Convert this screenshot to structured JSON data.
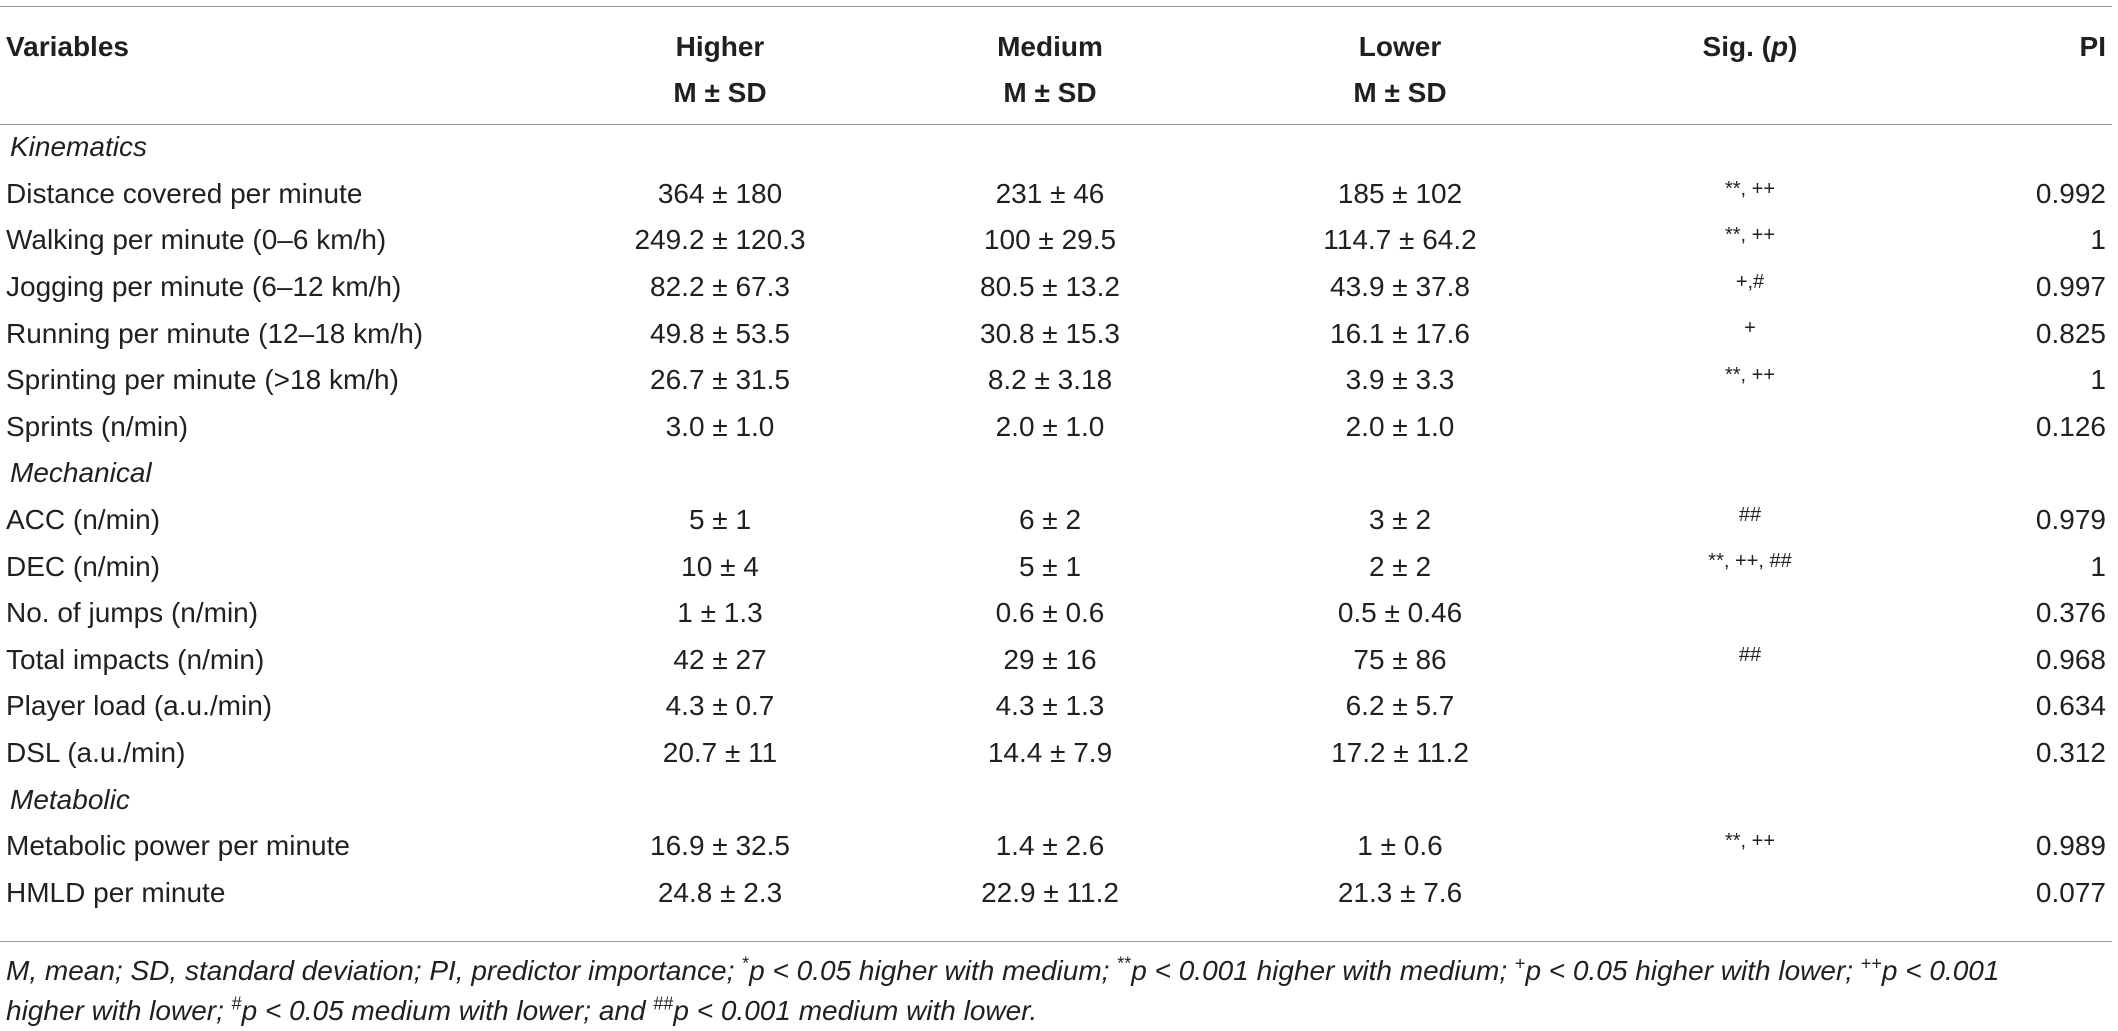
{
  "table": {
    "headers": {
      "variables": "Variables",
      "higher": "Higher",
      "medium": "Medium",
      "lower": "Lower",
      "stat": "M ± SD",
      "sig": "Sig. (",
      "sig_p": "p",
      "sig_close": ")",
      "pi": "PI"
    },
    "sections": [
      {
        "name": "Kinematics",
        "rows": [
          {
            "label": "Distance covered per minute",
            "higher": "364 ± 180",
            "medium": "231 ± 46",
            "lower": "185 ± 102",
            "sig": "**, ++",
            "pi": "0.992"
          },
          {
            "label": "Walking per minute (0–6 km/h)",
            "higher": "249.2 ± 120.3",
            "medium": "100 ± 29.5",
            "lower": "114.7 ± 64.2",
            "sig": "**, ++",
            "pi": "1"
          },
          {
            "label": "Jogging per minute (6–12 km/h)",
            "higher": "82.2 ± 67.3",
            "medium": "80.5 ± 13.2",
            "lower": "43.9 ± 37.8",
            "sig": "+,#",
            "pi": "0.997"
          },
          {
            "label": "Running per minute (12–18 km/h)",
            "higher": "49.8 ± 53.5",
            "medium": "30.8 ± 15.3",
            "lower": "16.1 ± 17.6",
            "sig": "+",
            "pi": "0.825"
          },
          {
            "label": "Sprinting per minute (>18 km/h)",
            "higher": "26.7 ± 31.5",
            "medium": "8.2 ± 3.18",
            "lower": "3.9 ± 3.3",
            "sig": "**, ++",
            "pi": "1"
          },
          {
            "label": "Sprints (n/min)",
            "higher": "3.0 ± 1.0",
            "medium": "2.0 ± 1.0",
            "lower": "2.0 ± 1.0",
            "sig": "",
            "pi": "0.126"
          }
        ]
      },
      {
        "name": "Mechanical",
        "rows": [
          {
            "label": "ACC (n/min)",
            "higher": "5 ± 1",
            "medium": "6 ± 2",
            "lower": "3 ± 2",
            "sig": "##",
            "pi": "0.979"
          },
          {
            "label": "DEC (n/min)",
            "higher": "10 ± 4",
            "medium": "5 ± 1",
            "lower": "2 ± 2",
            "sig": "**, ++, ##",
            "pi": "1"
          },
          {
            "label": "No. of jumps (n/min)",
            "higher": "1 ± 1.3",
            "medium": "0.6 ± 0.6",
            "lower": "0.5 ± 0.46",
            "sig": "",
            "pi": "0.376"
          },
          {
            "label": "Total impacts (n/min)",
            "higher": "42 ± 27",
            "medium": "29 ± 16",
            "lower": "75 ± 86",
            "sig": "##",
            "pi": "0.968"
          },
          {
            "label": "Player load (a.u./min)",
            "higher": "4.3 ± 0.7",
            "medium": "4.3 ± 1.3",
            "lower": "6.2 ± 5.7",
            "sig": "",
            "pi": "0.634"
          },
          {
            "label": "DSL (a.u./min)",
            "higher": "20.7 ± 11",
            "medium": "14.4 ± 7.9",
            "lower": "17.2 ± 11.2",
            "sig": "",
            "pi": "0.312"
          }
        ]
      },
      {
        "name": "Metabolic",
        "rows": [
          {
            "label": "Metabolic power per minute",
            "higher": "16.9 ± 32.5",
            "medium": "1.4 ± 2.6",
            "lower": "1 ± 0.6",
            "sig": "**, ++",
            "pi": "0.989"
          },
          {
            "label": "HMLD per minute",
            "higher": "24.8 ± 2.3",
            "medium": "22.9 ± 11.2",
            "lower": "21.3 ± 7.6",
            "sig": "",
            "pi": "0.077"
          }
        ]
      }
    ]
  },
  "footnote": {
    "t1": "M, mean; SD, standard deviation; PI, predictor importance; ",
    "s1": "*",
    "t2": "p < 0.05 higher with medium; ",
    "s2": "**",
    "t3": "p < 0.001 higher with medium; ",
    "s3": "+",
    "t4": "p < 0.05 higher with lower; ",
    "s4": "++",
    "t5": "p < 0.001",
    "t6": "higher with lower; ",
    "s5": "#",
    "t7": "p < 0.05 medium with lower; and ",
    "s6": "##",
    "t8": "p < 0.001 medium with lower."
  }
}
